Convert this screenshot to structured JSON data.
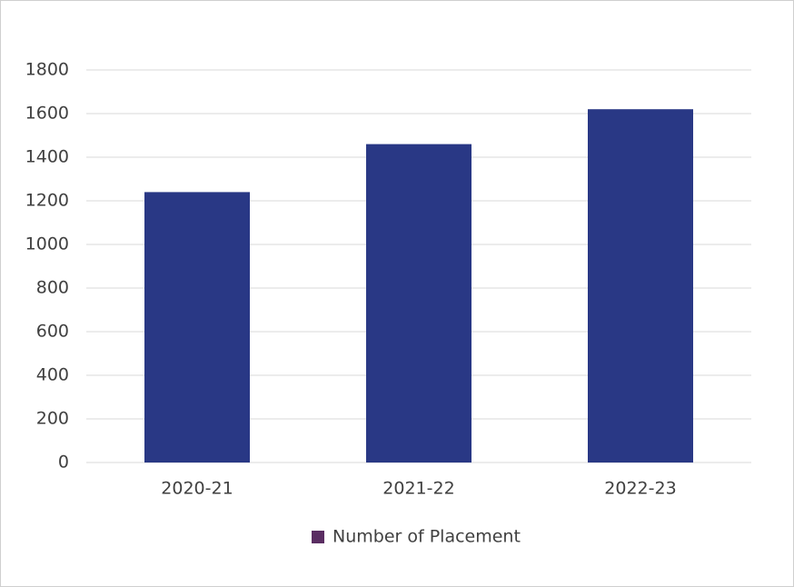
{
  "chart_data": {
    "type": "bar",
    "categories": [
      "2020-21",
      "2021-22",
      "2022-23"
    ],
    "series": [
      {
        "name": "Number of Placement",
        "color": "#293885",
        "values": [
          1240,
          1460,
          1620
        ]
      }
    ],
    "legend_color": "#5a2d62",
    "ylim": [
      0,
      1800
    ],
    "yticks": [
      0,
      200,
      400,
      600,
      800,
      1000,
      1200,
      1400,
      1600,
      1800
    ],
    "grid": true,
    "legend": "bottom"
  }
}
